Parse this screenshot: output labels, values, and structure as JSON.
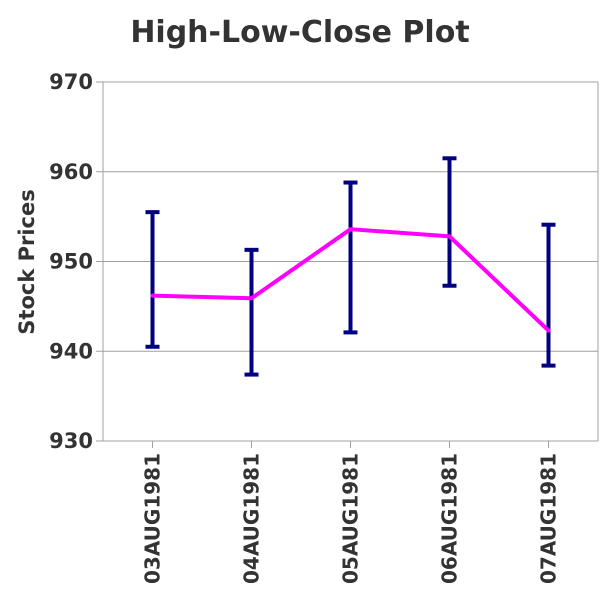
{
  "chart_data": {
    "type": "line",
    "title": "High-Low-Close Plot",
    "xlabel": "",
    "ylabel": "Stock Prices",
    "ylim": [
      930,
      970
    ],
    "yticks": [
      930,
      940,
      950,
      960,
      970
    ],
    "categories": [
      "03AUG1981",
      "04AUG1981",
      "05AUG1981",
      "06AUG1981",
      "07AUG1981"
    ],
    "high": [
      955.5,
      951.3,
      958.8,
      961.5,
      954.1
    ],
    "low": [
      940.5,
      937.4,
      942.1,
      947.3,
      938.4
    ],
    "close": [
      946.2,
      945.9,
      953.6,
      952.8,
      942.3
    ],
    "grid": true,
    "colors": {
      "range_bar": "#000080",
      "close_line": "#ff00ff",
      "grid": "#a0a0a0",
      "axis": "#a0a0a0",
      "text": "#333333"
    }
  }
}
